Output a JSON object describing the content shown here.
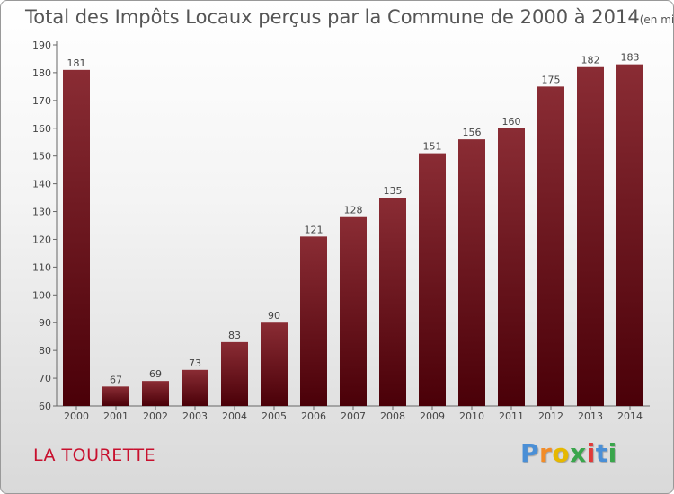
{
  "title": "Total des Impôts Locaux perçus par la Commune de 2000 à 2014",
  "title_unit": "(en milliers d'€)",
  "commune": "LA TOURETTE",
  "logo": {
    "letters": [
      "P",
      "r",
      "o",
      "x",
      "i",
      "t",
      "i"
    ],
    "colors": [
      "#4a8fd6",
      "#f28c28",
      "#e6b800",
      "#3aa64c",
      "#e03a3a",
      "#4a8fd6",
      "#3aa64c"
    ]
  },
  "colors": {
    "bar_top": "#8a2c34",
    "bar_bottom": "#4a0008",
    "commune": "#c8102e"
  },
  "chart_data": {
    "type": "bar",
    "title": "Total des Impôts Locaux perçus par la Commune de 2000 à 2014",
    "xlabel": "",
    "ylabel": "en milliers d'€",
    "categories": [
      "2000",
      "2001",
      "2002",
      "2003",
      "2004",
      "2005",
      "2006",
      "2007",
      "2008",
      "2009",
      "2010",
      "2011",
      "2012",
      "2013",
      "2014"
    ],
    "values": [
      181,
      67,
      69,
      73,
      83,
      90,
      121,
      128,
      135,
      151,
      156,
      160,
      175,
      182,
      183
    ],
    "ylim": [
      60,
      190
    ],
    "yticks": [
      60,
      70,
      80,
      90,
      100,
      110,
      120,
      130,
      140,
      150,
      160,
      170,
      180,
      190
    ],
    "grid": false
  }
}
